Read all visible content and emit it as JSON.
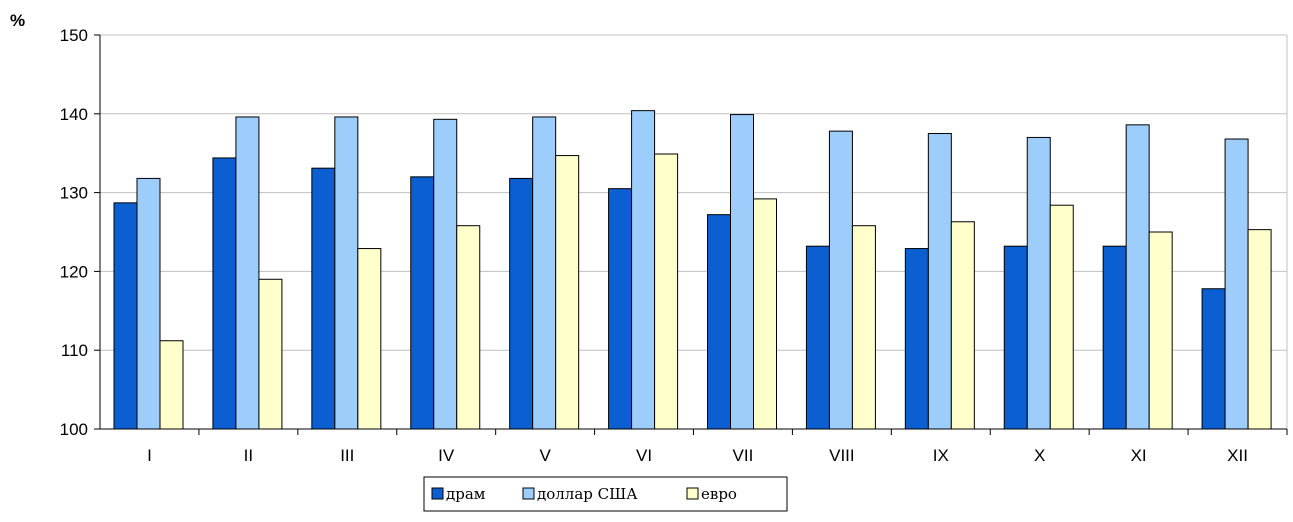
{
  "chart_data": {
    "type": "bar",
    "unit_label": "%",
    "categories": [
      "I",
      "II",
      "III",
      "IV",
      "V",
      "VI",
      "VII",
      "VIII",
      "IX",
      "X",
      "XI",
      "XII"
    ],
    "series": [
      {
        "name": "драм",
        "color": "#0b5fd0",
        "values": [
          128.7,
          134.4,
          133.1,
          132.0,
          131.8,
          130.5,
          127.2,
          123.2,
          122.9,
          123.2,
          123.2,
          117.8
        ]
      },
      {
        "name": "доллар США",
        "color": "#9dcdfb",
        "values": [
          131.8,
          139.6,
          139.6,
          139.3,
          139.6,
          140.4,
          139.9,
          137.8,
          137.5,
          137.0,
          138.6,
          136.8
        ]
      },
      {
        "name": "евро",
        "color": "#ffffcc",
        "values": [
          111.2,
          119.0,
          122.9,
          125.8,
          134.7,
          134.9,
          129.2,
          125.8,
          126.3,
          128.4,
          125.0,
          125.3
        ]
      }
    ],
    "ylim": [
      100,
      150
    ],
    "yticks": [
      100,
      110,
      120,
      130,
      140,
      150
    ],
    "grid": true,
    "legend_position": "bottom"
  }
}
